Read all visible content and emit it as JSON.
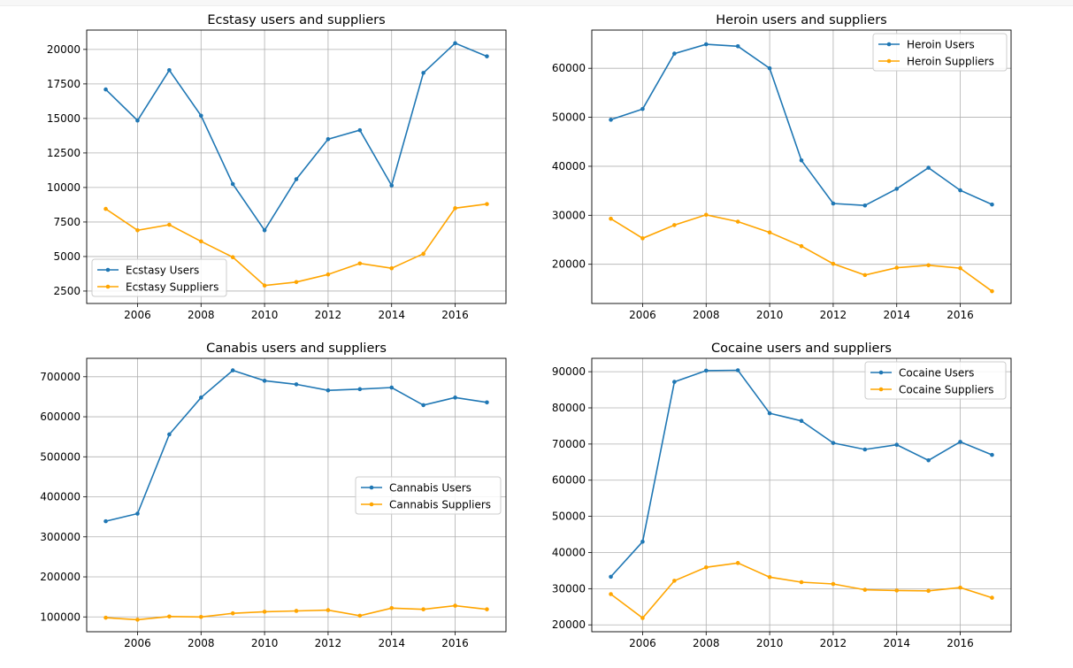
{
  "chart_data": [
    {
      "type": "line",
      "title": "Ecstasy users and suppliers",
      "xlabel": "",
      "ylabel": "",
      "x": [
        2005,
        2006,
        2007,
        2008,
        2009,
        2010,
        2011,
        2012,
        2013,
        2014,
        2015,
        2016,
        2017
      ],
      "xlim": [
        2004.4,
        2017.6
      ],
      "ylim": [
        1600,
        21400
      ],
      "xticks": [
        2006,
        2008,
        2010,
        2012,
        2014,
        2016
      ],
      "yticks": [
        2500,
        5000,
        7500,
        10000,
        12500,
        15000,
        17500,
        20000
      ],
      "grid": true,
      "legend_position": "lower-left",
      "series": [
        {
          "name": "Ecstasy Users",
          "color": "#1f77b4",
          "values": [
            17100,
            14850,
            18500,
            15200,
            10250,
            6900,
            10600,
            13500,
            14150,
            10150,
            18300,
            20450,
            19500
          ]
        },
        {
          "name": "Ecstasy Suppliers",
          "color": "#ffa500",
          "values": [
            8450,
            6900,
            7300,
            6100,
            4950,
            2900,
            3150,
            3700,
            4500,
            4150,
            5200,
            8500,
            8800
          ]
        }
      ]
    },
    {
      "type": "line",
      "title": "Heroin users and suppliers",
      "xlabel": "",
      "ylabel": "",
      "x": [
        2005,
        2006,
        2007,
        2008,
        2009,
        2010,
        2011,
        2012,
        2013,
        2014,
        2015,
        2016,
        2017
      ],
      "xlim": [
        2004.4,
        2017.6
      ],
      "ylim": [
        12000,
        67800
      ],
      "xticks": [
        2006,
        2008,
        2010,
        2012,
        2014,
        2016
      ],
      "yticks": [
        20000,
        30000,
        40000,
        50000,
        60000
      ],
      "grid": true,
      "legend_position": "upper-right",
      "series": [
        {
          "name": "Heroin Users",
          "color": "#1f77b4",
          "values": [
            49500,
            51700,
            63000,
            64900,
            64500,
            60000,
            41200,
            32400,
            32000,
            35400,
            39700,
            35100,
            32200
          ]
        },
        {
          "name": "Heroin Suppliers",
          "color": "#ffa500",
          "values": [
            29300,
            25300,
            28000,
            30100,
            28700,
            26500,
            23700,
            20100,
            17800,
            19300,
            19800,
            19200,
            14500
          ]
        }
      ]
    },
    {
      "type": "line",
      "title": "Canabis users and suppliers",
      "xlabel": "",
      "ylabel": "",
      "x": [
        2005,
        2006,
        2007,
        2008,
        2009,
        2010,
        2011,
        2012,
        2013,
        2014,
        2015,
        2016,
        2017
      ],
      "xlim": [
        2004.4,
        2017.6
      ],
      "ylim": [
        63000,
        746000
      ],
      "xticks": [
        2006,
        2008,
        2010,
        2012,
        2014,
        2016
      ],
      "yticks": [
        100000,
        200000,
        300000,
        400000,
        500000,
        600000,
        700000
      ],
      "grid": true,
      "legend_position": "center-right",
      "series": [
        {
          "name": "Cannabis Users",
          "color": "#1f77b4",
          "values": [
            339000,
            358000,
            556000,
            648000,
            716000,
            690000,
            681000,
            666000,
            669000,
            673000,
            629000,
            648000,
            636000
          ]
        },
        {
          "name": "Cannabis Suppliers",
          "color": "#ffa500",
          "values": [
            98000,
            93000,
            101000,
            100000,
            109000,
            113000,
            115000,
            117000,
            103000,
            122000,
            119000,
            128000,
            119000
          ]
        }
      ]
    },
    {
      "type": "line",
      "title": "Cocaine users and suppliers",
      "xlabel": "",
      "ylabel": "",
      "x": [
        2005,
        2006,
        2007,
        2008,
        2009,
        2010,
        2011,
        2012,
        2013,
        2014,
        2015,
        2016,
        2017
      ],
      "xlim": [
        2004.4,
        2017.6
      ],
      "ylim": [
        18100,
        93700
      ],
      "xticks": [
        2006,
        2008,
        2010,
        2012,
        2014,
        2016
      ],
      "yticks": [
        20000,
        30000,
        40000,
        50000,
        60000,
        70000,
        80000,
        90000
      ],
      "grid": true,
      "legend_position": "upper-right",
      "series": [
        {
          "name": "Cocaine Users",
          "color": "#1f77b4",
          "values": [
            33300,
            43000,
            87200,
            90300,
            90400,
            78500,
            76400,
            70300,
            68500,
            69800,
            65500,
            70600,
            67000
          ]
        },
        {
          "name": "Cocaine Suppliers",
          "color": "#ffa500",
          "values": [
            28500,
            21900,
            32200,
            35900,
            37100,
            33200,
            31800,
            31300,
            29700,
            29500,
            29400,
            30300,
            27500
          ]
        }
      ]
    }
  ]
}
